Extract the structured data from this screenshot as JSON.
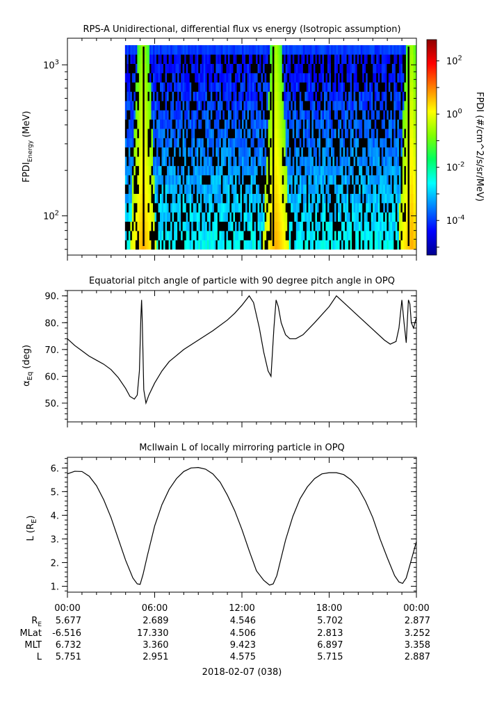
{
  "chart_data": [
    {
      "type": "heatmap",
      "title": "RPS-A Unidirectional, differential flux vs energy (Isotropic assumption)",
      "ylabel_main": "FPDI",
      "ylabel_sub": "Energy",
      "ylabel_unit": "(MeV)",
      "yscale": "log",
      "ylim": [
        55,
        1500
      ],
      "yticks": [
        {
          "value": 100,
          "base": "10",
          "exp": "2"
        },
        {
          "value": 1000,
          "base": "10",
          "exp": "3"
        }
      ],
      "energy_range": [
        60,
        1350
      ],
      "colorbar_label": "FPDI (#/cm^2/s/sr/MeV)",
      "colorbar_range": [
        -5.3,
        2.8
      ],
      "colorbar_ticks": [
        {
          "value": -4,
          "base": "10",
          "exp": "-4"
        },
        {
          "value": -2,
          "base": "10",
          "exp": "-2"
        },
        {
          "value": 0,
          "base": "10",
          "exp": "0"
        },
        {
          "value": 2,
          "base": "10",
          "exp": "2"
        }
      ],
      "flux_peaks_hours": [
        5.15,
        14.3,
        23.6
      ],
      "colormap": [
        "#00008f",
        "#0000ff",
        "#0080ff",
        "#00ffff",
        "#00ff60",
        "#80ff00",
        "#ffff00",
        "#ff8000",
        "#ff0000",
        "#8f0000"
      ]
    },
    {
      "type": "line",
      "title": "Equatorial pitch angle of particle with 90 degree pitch angle in OPQ",
      "ylabel_main": "α",
      "ylabel_sub": "Eq",
      "ylabel_unit": "(deg)",
      "ylim": [
        43,
        92
      ],
      "yticks": [
        50,
        60,
        70,
        80,
        90
      ],
      "series": [
        {
          "x": [
            0,
            0.5,
            1,
            1.5,
            2,
            2.5,
            3,
            3.5,
            4,
            4.3,
            4.6,
            4.8,
            4.95,
            5.05,
            5.1,
            5.15,
            5.25,
            5.4,
            5.6,
            6,
            6.5,
            7,
            8,
            9,
            10,
            11,
            11.5,
            12,
            12.5,
            12.8,
            13.2,
            13.5,
            13.8,
            14.0,
            14.2,
            14.35,
            14.5,
            14.7,
            15.0,
            15.3,
            15.7,
            16.2,
            17,
            18,
            18.5,
            19,
            20,
            21,
            21.8,
            22.2,
            22.6,
            22.8,
            23.0,
            23.15,
            23.3,
            23.45,
            23.55,
            23.65,
            23.8,
            24.0
          ],
          "y": [
            74,
            71.5,
            69.5,
            67.5,
            66,
            64.5,
            62.5,
            59.5,
            55.5,
            52.5,
            51.5,
            53,
            62,
            82,
            88.5,
            80,
            55,
            50,
            53,
            57.5,
            62,
            65.5,
            70,
            73.5,
            77,
            81,
            83.5,
            86.5,
            90,
            87.5,
            78,
            69,
            62,
            60,
            78,
            88.5,
            86,
            80,
            75.5,
            74,
            74,
            75.5,
            80,
            86,
            90,
            87.5,
            82.5,
            77.5,
            73.5,
            72,
            73,
            78,
            88.5,
            80,
            72.5,
            88.5,
            87,
            80,
            78,
            82
          ]
        }
      ]
    },
    {
      "type": "line",
      "title": "McIlwain L of locally mirroring particle in OPQ",
      "ylabel_main": "L (R",
      "ylabel_sub": "E",
      "ylabel_unit": ")",
      "ylim": [
        0.75,
        6.45
      ],
      "yticks": [
        1,
        2,
        3,
        4,
        5,
        6
      ],
      "series": [
        {
          "x": [
            0,
            0.5,
            1,
            1.5,
            2,
            2.5,
            3,
            3.5,
            4,
            4.5,
            4.8,
            5.0,
            5.2,
            5.5,
            6,
            6.5,
            7,
            7.5,
            8,
            8.5,
            9,
            9.5,
            10,
            10.5,
            11,
            11.5,
            12,
            12.5,
            13,
            13.5,
            13.9,
            14.15,
            14.4,
            14.7,
            15,
            15.5,
            16,
            16.5,
            17,
            17.5,
            18,
            18.5,
            19,
            19.5,
            20,
            20.5,
            21,
            21.5,
            22,
            22.5,
            22.8,
            23.05,
            23.3,
            23.6,
            24.0
          ],
          "y": [
            5.751,
            5.86,
            5.85,
            5.65,
            5.25,
            4.65,
            3.9,
            3.0,
            2.1,
            1.35,
            1.1,
            1.08,
            1.5,
            2.3,
            3.55,
            4.45,
            5.1,
            5.55,
            5.85,
            6.0,
            6.02,
            5.95,
            5.75,
            5.4,
            4.85,
            4.2,
            3.4,
            2.5,
            1.65,
            1.25,
            1.05,
            1.1,
            1.45,
            2.2,
            2.95,
            3.95,
            4.7,
            5.2,
            5.55,
            5.75,
            5.8,
            5.8,
            5.72,
            5.5,
            5.15,
            4.6,
            3.9,
            3.0,
            2.2,
            1.45,
            1.18,
            1.12,
            1.35,
            2.0,
            2.887
          ]
        }
      ]
    }
  ],
  "xaxis": {
    "date_label": "2018-02-07 (038)",
    "start": "2018-02-07 00:00",
    "end": "2018-02-08 00:00",
    "tick_labels": [
      "00:00",
      "06:00",
      "12:00",
      "18:00",
      "00:00"
    ],
    "row_labels": [
      {
        "main": "R",
        "sub": "E"
      },
      {
        "main": "MLat",
        "sub": ""
      },
      {
        "main": "MLT",
        "sub": ""
      },
      {
        "main": "L",
        "sub": ""
      }
    ],
    "rows": [
      [
        "5.677",
        "2.689",
        "4.546",
        "5.702",
        "2.877"
      ],
      [
        "-6.516",
        "17.330",
        "4.506",
        "2.813",
        "3.252"
      ],
      [
        "6.732",
        "3.360",
        "9.423",
        "6.897",
        "3.358"
      ],
      [
        "5.751",
        "2.951",
        "4.575",
        "5.715",
        "2.887"
      ]
    ]
  }
}
